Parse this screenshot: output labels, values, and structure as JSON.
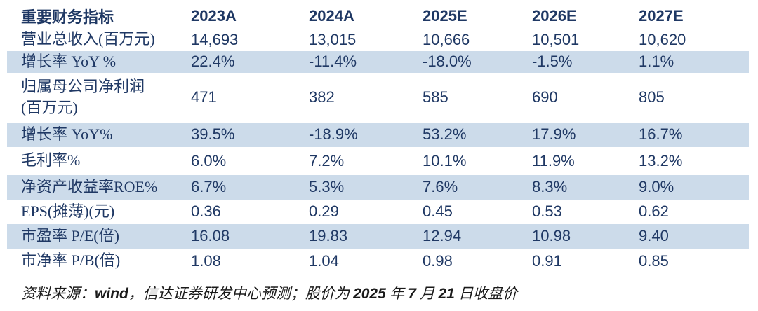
{
  "colors": {
    "text_navy": "#1f3864",
    "row_highlight": "#ccdbea",
    "footer_text": "#1a1a1a"
  },
  "table": {
    "header": {
      "label": "重要财务指标",
      "columns": [
        "2023A",
        "2024A",
        "2025E",
        "2026E",
        "2027E"
      ]
    },
    "rows": [
      {
        "label": "营业总收入(百万元)",
        "values": [
          "14,693",
          "13,015",
          "10,666",
          "10,501",
          "10,620"
        ],
        "highlight": false
      },
      {
        "label": "增长率 YoY %",
        "values": [
          "22.4%",
          "-11.4%",
          "-18.0%",
          "-1.5%",
          "1.1%"
        ],
        "highlight": true
      },
      {
        "label": "归属母公司净利润",
        "label_line2": "(百万元)",
        "values": [
          "471",
          "382",
          "585",
          "690",
          "805"
        ],
        "highlight": false
      },
      {
        "label": "增长率 YoY%",
        "values": [
          "39.5%",
          "-18.9%",
          "53.2%",
          "17.9%",
          "16.7%"
        ],
        "highlight": true
      },
      {
        "label": "毛利率%",
        "values": [
          "6.0%",
          "7.2%",
          "10.1%",
          "11.9%",
          "13.2%"
        ],
        "highlight": false
      },
      {
        "label": "净资产收益率ROE%",
        "values": [
          "6.7%",
          "5.3%",
          "7.6%",
          "8.3%",
          "9.0%"
        ],
        "highlight": true
      },
      {
        "label": "EPS(摊薄)(元)",
        "values": [
          "0.36",
          "0.29",
          "0.45",
          "0.53",
          "0.62"
        ],
        "highlight": false
      },
      {
        "label": "市盈率 P/E(倍)",
        "values": [
          "16.08",
          "19.83",
          "12.94",
          "10.98",
          "9.40"
        ],
        "highlight": true
      },
      {
        "label": "市净率 P/B(倍)",
        "values": [
          "1.08",
          "1.04",
          "0.98",
          "0.91",
          "0.85"
        ],
        "highlight": false
      }
    ]
  },
  "footer": {
    "prefix": "资料来源：",
    "source": "wind",
    "middle": "，信达证券研发中心预测；股价为 ",
    "year": "2025",
    "year_unit": " 年 ",
    "month": "7",
    "month_unit": " 月 ",
    "day": "21",
    "day_suffix": " 日收盘价"
  }
}
